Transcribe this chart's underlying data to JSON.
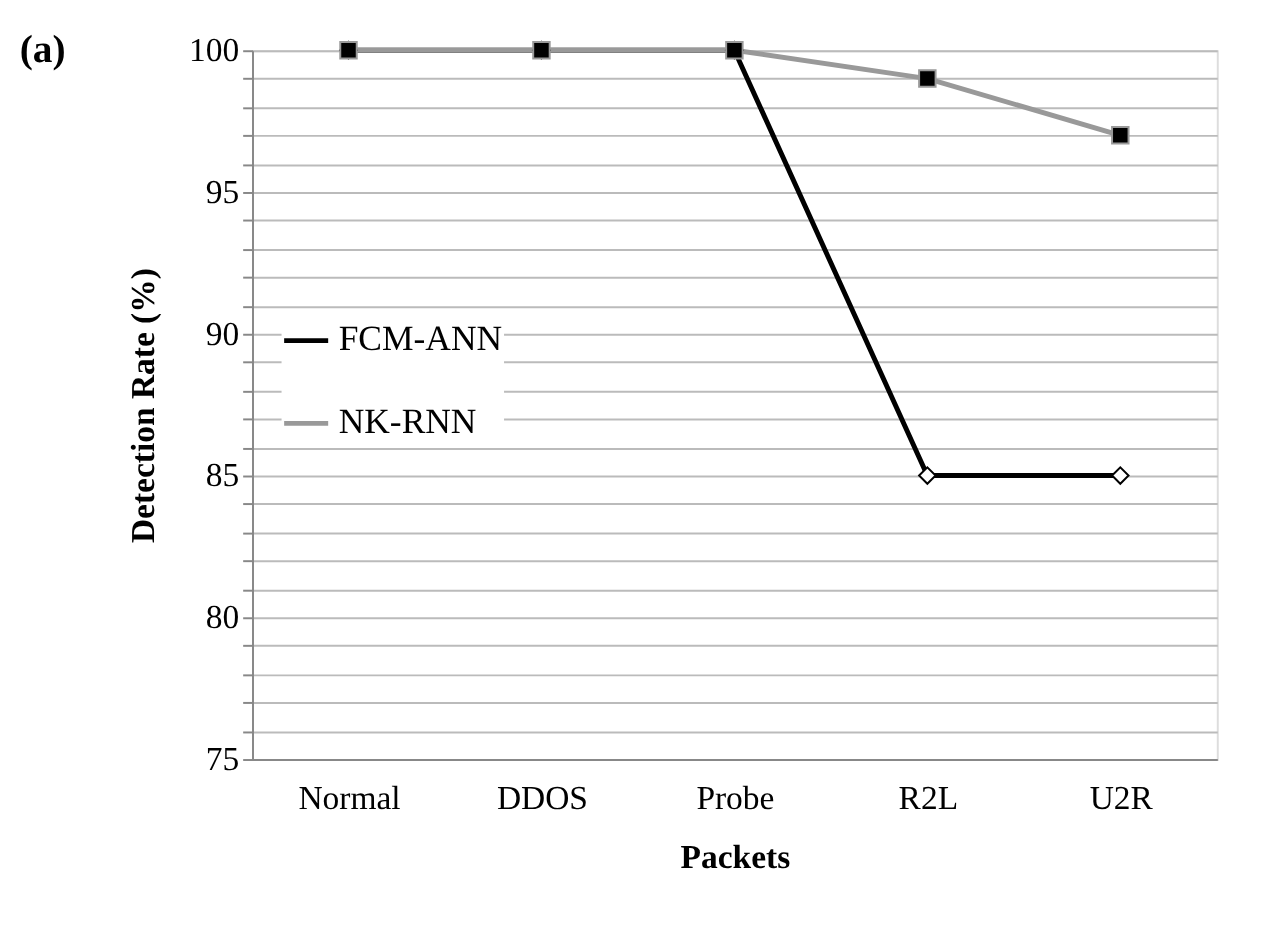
{
  "chart_data": {
    "type": "line",
    "xlabel": "Packets",
    "ylabel": "Detection Rate (%)",
    "annotations": [
      "(a)"
    ],
    "categories": [
      "Normal",
      "DDOS",
      "Probe",
      "R2L",
      "U2R"
    ],
    "series": [
      {
        "name": "FCM-ANN",
        "color": "#000000",
        "marker": "diamond",
        "values": [
          100,
          100,
          100,
          85,
          85
        ]
      },
      {
        "name": "NK-RNN",
        "color": "#999999",
        "marker": "square",
        "values": [
          100,
          100,
          100,
          99,
          97
        ]
      }
    ],
    "ylim": [
      75,
      100
    ],
    "yticks": [
      75,
      {
        "value": 76,
        "label": null
      },
      {
        "value": 77,
        "label": null
      },
      {
        "value": 78,
        "label": null
      },
      {
        "value": 79,
        "label": null
      },
      80,
      {
        "value": 81,
        "label": null
      },
      {
        "value": 82,
        "label": null
      },
      {
        "value": 83,
        "label": null
      },
      {
        "value": 84,
        "label": null
      },
      85,
      {
        "value": 86,
        "label": null
      },
      {
        "value": 87,
        "label": null
      },
      {
        "value": 88,
        "label": null
      },
      {
        "value": 89,
        "label": null
      },
      90,
      {
        "value": 91,
        "label": null
      },
      {
        "value": 92,
        "label": null
      },
      {
        "value": 93,
        "label": null
      },
      {
        "value": 94,
        "label": null
      },
      95,
      {
        "value": 96,
        "label": null
      },
      {
        "value": 97,
        "label": null
      },
      {
        "value": 98,
        "label": null
      },
      {
        "value": 99,
        "label": null
      },
      100
    ],
    "grid": "y",
    "legend": "center left"
  }
}
